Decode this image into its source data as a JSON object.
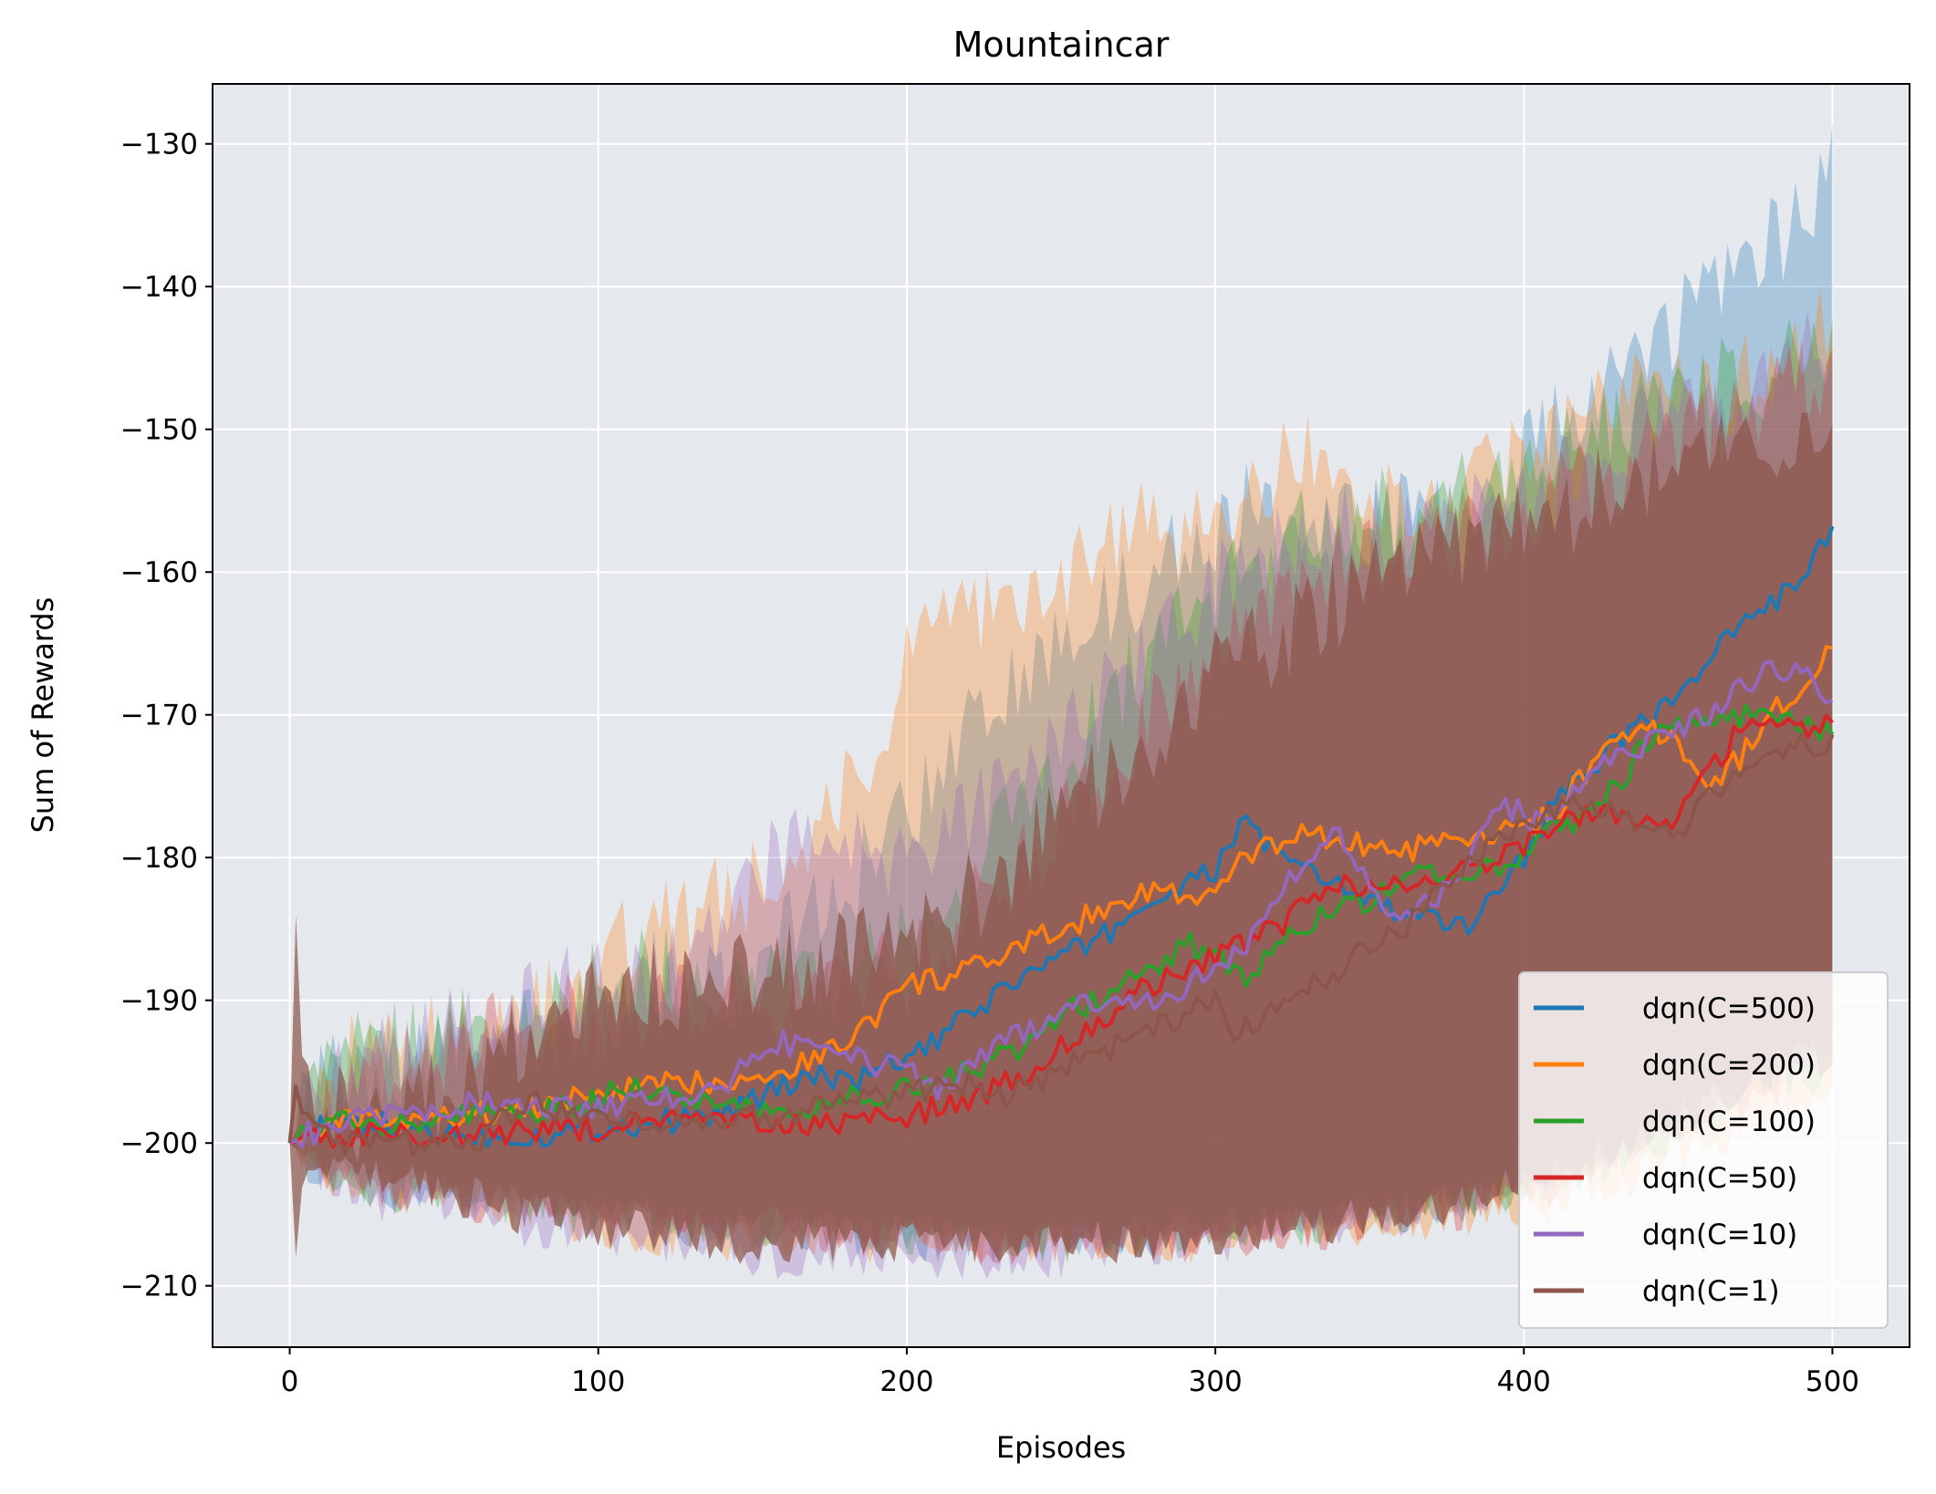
{
  "chart_data": {
    "type": "line",
    "title": "Mountaincar",
    "xlabel": "Episodes",
    "ylabel": "Sum of Rewards",
    "xlim": [
      -25,
      525
    ],
    "ylim": [
      -214.3,
      -125.8
    ],
    "xticks": [
      0,
      100,
      200,
      300,
      400,
      500
    ],
    "yticks": [
      -210,
      -200,
      -190,
      -180,
      -170,
      -160,
      -150,
      -140,
      -130
    ],
    "xtick_labels": [
      "0",
      "100",
      "200",
      "300",
      "400",
      "500"
    ],
    "ytick_labels": [
      "−210",
      "−200",
      "−190",
      "−180",
      "−170",
      "−160",
      "−150",
      "−140",
      "−130"
    ],
    "grid": true,
    "legend_position": "lower right",
    "background": "#e5e9ee",
    "series": [
      {
        "name": "dqn(C=500)",
        "color": "#1f77b4",
        "x": [
          0,
          10,
          20,
          40,
          60,
          80,
          100,
          120,
          140,
          160,
          170,
          180,
          190,
          200,
          210,
          220,
          240,
          260,
          280,
          290,
          300,
          310,
          320,
          340,
          360,
          380,
          400,
          410,
          420,
          430,
          440,
          450,
          460,
          470,
          480,
          490,
          500
        ],
        "mean": [
          -200,
          -199,
          -198.5,
          -199,
          -199.5,
          -199.5,
          -199,
          -198.5,
          -198,
          -196,
          -195,
          -196,
          -195,
          -194,
          -193,
          -191,
          -188,
          -186,
          -183,
          -182,
          -181,
          -177,
          -180,
          -182,
          -184,
          -185,
          -180,
          -176,
          -174,
          -172,
          -170,
          -169,
          -166,
          -164,
          -162,
          -161,
          -157
        ],
        "upper": [
          -200,
          -196,
          -195,
          -194,
          -193,
          -192,
          -191,
          -190,
          -189,
          -186,
          -184,
          -182,
          -180,
          -177,
          -174,
          -171,
          -167,
          -163,
          -160,
          -158,
          -157,
          -155,
          -156,
          -157,
          -156,
          -155,
          -152,
          -150,
          -148,
          -146,
          -144,
          -143,
          -140,
          -139,
          -137,
          -135,
          -131
        ],
        "lower": [
          -200,
          -202,
          -203,
          -203.5,
          -204,
          -204.5,
          -205,
          -205.5,
          -206,
          -206,
          -206,
          -206.5,
          -206.5,
          -207,
          -207,
          -207,
          -207,
          -207,
          -206.5,
          -206,
          -206,
          -205.5,
          -205.5,
          -205,
          -204.5,
          -204,
          -203,
          -202,
          -201,
          -200,
          -199,
          -198,
          -197,
          -196,
          -195,
          -194,
          -193
        ]
      },
      {
        "name": "dqn(C=200)",
        "color": "#ff7f0e",
        "x": [
          0,
          10,
          20,
          40,
          60,
          80,
          100,
          120,
          140,
          160,
          170,
          180,
          190,
          200,
          210,
          220,
          240,
          260,
          280,
          290,
          300,
          310,
          320,
          330,
          340,
          360,
          380,
          400,
          410,
          420,
          430,
          440,
          450,
          460,
          470,
          480,
          490,
          500
        ],
        "mean": [
          -200,
          -199,
          -198.5,
          -198.5,
          -198,
          -197.5,
          -196.5,
          -196,
          -195.5,
          -195,
          -194,
          -193,
          -191,
          -189,
          -188.5,
          -188,
          -186,
          -184,
          -182,
          -183,
          -182.5,
          -180,
          -179,
          -178,
          -179,
          -179.5,
          -179,
          -178,
          -177,
          -174,
          -172,
          -171,
          -172,
          -175,
          -173,
          -170,
          -168,
          -165
        ],
        "upper": [
          -200,
          -196,
          -194,
          -193,
          -192,
          -190,
          -187,
          -185,
          -183,
          -181,
          -178,
          -175,
          -172,
          -167,
          -164,
          -163,
          -162,
          -159,
          -156,
          -157,
          -158,
          -154,
          -153,
          -152,
          -154,
          -155,
          -154,
          -152,
          -151,
          -150,
          -148,
          -147,
          -147,
          -148,
          -147,
          -145,
          -143,
          -141
        ],
        "lower": [
          -200,
          -202,
          -203,
          -203.5,
          -204,
          -205,
          -206,
          -206.5,
          -207,
          -207,
          -207,
          -207,
          -207,
          -207,
          -207,
          -207,
          -207,
          -207,
          -207,
          -207,
          -207,
          -206.5,
          -206,
          -206,
          -206,
          -205.5,
          -205,
          -204.5,
          -204,
          -203.5,
          -203,
          -202,
          -201,
          -200,
          -199,
          -198,
          -197,
          -196
        ]
      },
      {
        "name": "dqn(C=100)",
        "color": "#2ca02c",
        "x": [
          0,
          10,
          20,
          40,
          60,
          80,
          100,
          110,
          120,
          140,
          160,
          180,
          200,
          210,
          220,
          230,
          240,
          250,
          260,
          270,
          280,
          290,
          300,
          310,
          320,
          340,
          350,
          360,
          370,
          380,
          400,
          410,
          420,
          430,
          440,
          450,
          460,
          470,
          480,
          490,
          500
        ],
        "mean": [
          -200,
          -199,
          -198.5,
          -198.5,
          -198,
          -198,
          -197,
          -196,
          -196.5,
          -197,
          -198,
          -197,
          -196,
          -196,
          -195,
          -194,
          -193,
          -191,
          -190,
          -189,
          -188,
          -186,
          -187,
          -189,
          -186,
          -183,
          -183,
          -182,
          -181,
          -181,
          -180,
          -178,
          -177,
          -175,
          -172,
          -171,
          -170,
          -170,
          -170,
          -171,
          -171
        ],
        "upper": [
          -200,
          -196,
          -194,
          -193,
          -192,
          -191,
          -189,
          -188,
          -188,
          -189,
          -189,
          -188,
          -186,
          -183,
          -181,
          -179,
          -175,
          -173,
          -171,
          -168,
          -166,
          -163,
          -162,
          -160,
          -158,
          -157,
          -156,
          -156,
          -156,
          -155,
          -153,
          -152,
          -151,
          -150,
          -148,
          -147,
          -147,
          -146,
          -146,
          -145,
          -145
        ],
        "lower": [
          -200,
          -202,
          -203,
          -203.5,
          -204,
          -204.5,
          -205,
          -205,
          -205.5,
          -206,
          -206,
          -206,
          -206.5,
          -207,
          -207,
          -207,
          -207,
          -207,
          -207,
          -207,
          -207,
          -206.5,
          -206.5,
          -206,
          -206,
          -205.5,
          -205,
          -205,
          -204.5,
          -204,
          -203.5,
          -203,
          -202,
          -201,
          -200,
          -199,
          -198,
          -197,
          -196,
          -195.5,
          -195
        ]
      },
      {
        "name": "dqn(C=50)",
        "color": "#d62728",
        "x": [
          0,
          10,
          20,
          40,
          60,
          80,
          100,
          120,
          140,
          160,
          180,
          200,
          210,
          220,
          230,
          240,
          250,
          260,
          270,
          280,
          290,
          300,
          310,
          320,
          330,
          340,
          350,
          360,
          370,
          380,
          390,
          400,
          410,
          420,
          430,
          440,
          450,
          460,
          470,
          480,
          490,
          500
        ],
        "mean": [
          -200,
          -199.5,
          -199.5,
          -199.5,
          -199.5,
          -199,
          -199,
          -198.5,
          -198.5,
          -199,
          -198.5,
          -198,
          -197.5,
          -197,
          -196,
          -195,
          -193,
          -192,
          -190,
          -189,
          -188,
          -187,
          -186,
          -185,
          -183,
          -182,
          -182,
          -182,
          -182,
          -181,
          -180,
          -179,
          -178,
          -177,
          -177,
          -178,
          -177,
          -174,
          -171,
          -170,
          -171,
          -170
        ],
        "upper": [
          -200,
          -197,
          -195,
          -194,
          -193,
          -192,
          -191,
          -190,
          -190,
          -190,
          -189,
          -188,
          -186,
          -184,
          -182,
          -180,
          -178,
          -175,
          -173,
          -170,
          -168,
          -166,
          -164,
          -162,
          -161,
          -160,
          -159,
          -158,
          -158,
          -157,
          -156,
          -156,
          -155,
          -154,
          -153,
          -152,
          -151,
          -150,
          -149,
          -148,
          -147,
          -147
        ],
        "lower": [
          -200,
          -202,
          -203,
          -203.5,
          -204,
          -204.5,
          -205,
          -205.5,
          -206,
          -206,
          -206.5,
          -206.5,
          -207,
          -207,
          -207,
          -207,
          -207,
          -207,
          -207,
          -207,
          -207,
          -207,
          -206.5,
          -206.5,
          -206,
          -206,
          -205.5,
          -205,
          -205,
          -204.5,
          -204,
          -203.5,
          -203,
          -202,
          -201,
          -200,
          -199,
          -198,
          -197,
          -196,
          -195,
          -194
        ]
      },
      {
        "name": "dqn(C=10)",
        "color": "#9467bd",
        "x": [
          0,
          10,
          20,
          40,
          60,
          80,
          100,
          120,
          140,
          150,
          160,
          180,
          200,
          210,
          220,
          230,
          240,
          250,
          260,
          270,
          280,
          290,
          300,
          310,
          320,
          330,
          340,
          350,
          360,
          370,
          380,
          390,
          400,
          410,
          420,
          430,
          440,
          450,
          460,
          470,
          480,
          490,
          500
        ],
        "mean": [
          -200,
          -199,
          -198.5,
          -198,
          -197,
          -197.5,
          -197.5,
          -197,
          -196,
          -194,
          -193,
          -194,
          -195,
          -196,
          -195,
          -193,
          -192,
          -191,
          -190,
          -190,
          -190,
          -189,
          -188,
          -186,
          -183,
          -180,
          -178,
          -182,
          -184,
          -183,
          -181,
          -176,
          -177,
          -178,
          -174,
          -173,
          -172,
          -171,
          -170,
          -168,
          -167,
          -167,
          -169
        ],
        "upper": [
          -200,
          -196,
          -195,
          -193,
          -191,
          -190,
          -189,
          -187,
          -185,
          -182,
          -180,
          -180,
          -180,
          -179,
          -177,
          -175,
          -173,
          -171,
          -169,
          -167,
          -165,
          -163,
          -161,
          -160,
          -159,
          -157,
          -156,
          -157,
          -158,
          -158,
          -157,
          -155,
          -155,
          -154,
          -152,
          -151,
          -150,
          -149,
          -148,
          -147,
          -146,
          -145,
          -145
        ],
        "lower": [
          -200,
          -202,
          -203.5,
          -204.5,
          -205,
          -206,
          -206.5,
          -207,
          -207.5,
          -208,
          -208,
          -208,
          -208,
          -208,
          -208,
          -208,
          -208,
          -208,
          -207.5,
          -207.5,
          -207,
          -207,
          -207,
          -206.5,
          -206,
          -206,
          -205.5,
          -205,
          -205,
          -204.5,
          -204,
          -203.5,
          -203,
          -202,
          -201,
          -200,
          -199,
          -198,
          -197,
          -196,
          -195,
          -194,
          -193
        ]
      },
      {
        "name": "dqn(C=1)",
        "color": "#8c564b",
        "x": [
          0,
          2,
          5,
          10,
          20,
          40,
          60,
          70,
          80,
          90,
          100,
          120,
          140,
          160,
          180,
          200,
          220,
          230,
          240,
          250,
          260,
          270,
          280,
          290,
          300,
          305,
          310,
          320,
          330,
          340,
          350,
          360,
          370,
          380,
          390,
          400,
          410,
          420,
          430,
          440,
          450,
          460,
          470,
          480,
          490,
          500
        ],
        "mean": [
          -200,
          -196,
          -198,
          -199.5,
          -200,
          -200,
          -200,
          -198,
          -197,
          -198,
          -198,
          -198.5,
          -198.5,
          -198,
          -197,
          -196.5,
          -196,
          -197,
          -196,
          -195,
          -194,
          -193,
          -192,
          -191,
          -190,
          -193,
          -192,
          -190,
          -189,
          -188,
          -186,
          -185,
          -183,
          -181,
          -179,
          -178,
          -177,
          -176,
          -177,
          -178,
          -178,
          -176,
          -174,
          -173,
          -172,
          -172
        ],
        "upper": [
          -200,
          -184,
          -194,
          -197,
          -198,
          -197,
          -196,
          -193,
          -192,
          -191,
          -190,
          -189,
          -189,
          -188,
          -187,
          -186,
          -183,
          -181,
          -179,
          -177,
          -175,
          -173,
          -171,
          -169,
          -167,
          -167,
          -166,
          -165,
          -163,
          -162,
          -161,
          -160,
          -159,
          -158,
          -157,
          -156,
          -156,
          -155,
          -154,
          -153,
          -152,
          -152,
          -151,
          -150,
          -150,
          -149
        ],
        "lower": [
          -200,
          -208,
          -202,
          -202,
          -202,
          -203,
          -204,
          -205,
          -205,
          -205.5,
          -206,
          -206.5,
          -207,
          -207,
          -207,
          -207,
          -207,
          -207,
          -207,
          -207,
          -207,
          -207,
          -207,
          -206.5,
          -206.5,
          -206.5,
          -206,
          -206,
          -205.5,
          -205.5,
          -205,
          -205,
          -204.5,
          -204,
          -203.5,
          -203,
          -202,
          -201,
          -200,
          -199,
          -198,
          -197,
          -196,
          -195,
          -194,
          -194
        ]
      }
    ]
  }
}
